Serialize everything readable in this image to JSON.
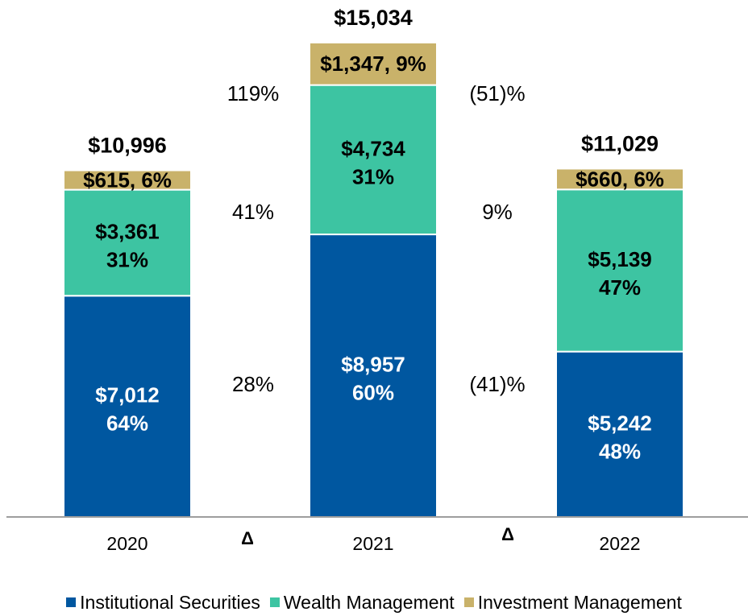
{
  "chart_data": {
    "type": "bar",
    "stacked": true,
    "title": "",
    "xlabel": "",
    "ylabel": "",
    "ylim": [
      0,
      15034
    ],
    "categories": [
      "2020",
      "2021",
      "2022"
    ],
    "series": [
      {
        "name": "Institutional Securities",
        "color": "#0057A0",
        "values": [
          7012,
          8957,
          5242
        ],
        "labels": [
          "$7,012",
          "$8,957",
          "$5,242"
        ],
        "shares": [
          "64%",
          "60%",
          "48%"
        ]
      },
      {
        "name": "Wealth Management",
        "color": "#3DC4A2",
        "values": [
          3361,
          4734,
          5139
        ],
        "labels": [
          "$3,361",
          "$4,734",
          "$5,139"
        ],
        "shares": [
          "31%",
          "31%",
          "47%"
        ]
      },
      {
        "name": "Investment Management",
        "color": "#C9B26A",
        "values": [
          615,
          1347,
          660
        ],
        "labels": [
          "$615, 6%",
          "$1,347, 9%",
          "$660, 6%"
        ]
      }
    ],
    "totals": [
      "$10,996",
      "$15,034",
      "$11,029"
    ],
    "deltas": [
      {
        "symbol": "Δ",
        "institutional": "28%",
        "wealth": "41%",
        "investment": "119%"
      },
      {
        "symbol": "Δ",
        "institutional": "(41)%",
        "wealth": "9%",
        "investment": "(51)%"
      }
    ]
  }
}
